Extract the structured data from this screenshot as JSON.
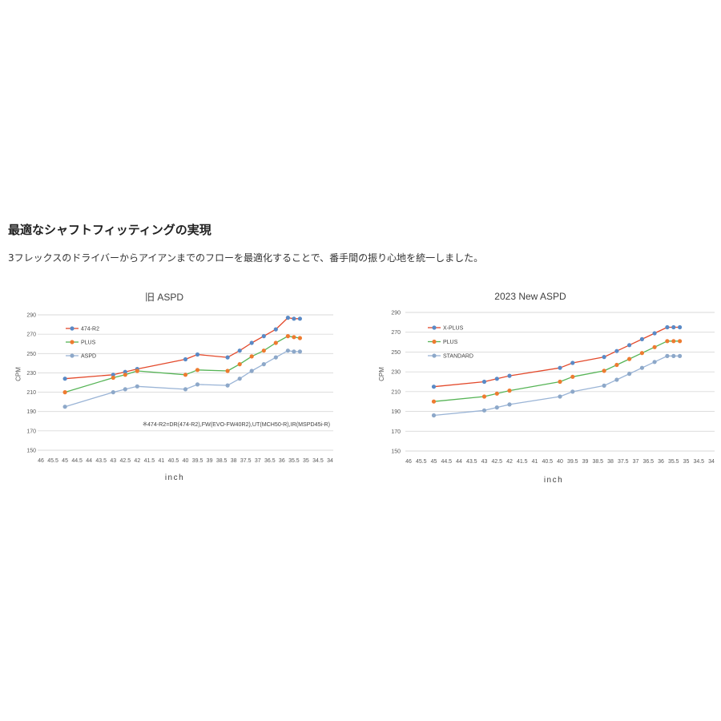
{
  "section": {
    "heading": "最適なシャフトフィッティングの実現",
    "description": "3フレックスのドライバーからアイアンまでのフローを最適化することで、番手間の振り心地を統一しました。"
  },
  "chart_data": [
    {
      "type": "line",
      "title": "旧 ASPD",
      "xlabel": "inch",
      "ylabel": "CPM",
      "xlim": [
        46,
        34
      ],
      "x_axis_reversed": true,
      "ylim": [
        150,
        290
      ],
      "x_ticks": [
        46,
        45.5,
        45,
        44.5,
        44,
        43.5,
        43,
        42.5,
        42,
        41.5,
        41,
        40.5,
        40,
        39.5,
        39,
        38.5,
        38,
        37.5,
        37,
        36.5,
        36,
        35.5,
        35,
        34.5,
        34
      ],
      "y_ticks": [
        150,
        170,
        190,
        210,
        230,
        250,
        270,
        290
      ],
      "grid": "horizontal",
      "legend": "top-left",
      "x": [
        45,
        43,
        42.5,
        42,
        40,
        39.5,
        38.25,
        37.75,
        37.25,
        36.75,
        36.25,
        35.75,
        35.5,
        35.25
      ],
      "series": [
        {
          "name": "474-R2",
          "line_color": "#E3492B",
          "marker_color": "#5A8AC6",
          "values": [
            224,
            228,
            231,
            234,
            244,
            249,
            246,
            253,
            261,
            268,
            275,
            287,
            286,
            286
          ]
        },
        {
          "name": "PLUS",
          "line_color": "#56B456",
          "marker_color": "#EE7B30",
          "values": [
            210,
            225,
            228,
            232,
            228,
            233,
            232,
            239,
            247,
            253,
            261,
            268,
            267,
            266
          ]
        },
        {
          "name": "ASPD",
          "line_color": "#9AB4D6",
          "marker_color": "#8DA8C9",
          "values": [
            195,
            210,
            213,
            216,
            213,
            218,
            217,
            224,
            232,
            239,
            246,
            253,
            252,
            252
          ]
        }
      ],
      "annotation": "※474-R2=DR(474-R2),FW(EVO-FW40R2),UT(MCH50-R),IR(MSPD45i-R)"
    },
    {
      "type": "line",
      "title": "2023 New ASPD",
      "xlabel": "inch",
      "ylabel": "CPM",
      "xlim": [
        46,
        34
      ],
      "x_axis_reversed": true,
      "ylim": [
        150,
        290
      ],
      "x_ticks": [
        46,
        45.5,
        45,
        44.5,
        44,
        43.5,
        43,
        42.5,
        42,
        41.5,
        41,
        40.5,
        40,
        39.5,
        39,
        38.5,
        38,
        37.5,
        37,
        36.5,
        36,
        35.5,
        35,
        34.5,
        34
      ],
      "y_ticks": [
        150,
        170,
        190,
        210,
        230,
        250,
        270,
        290
      ],
      "grid": "horizontal",
      "legend": "top-left",
      "x": [
        45,
        43,
        42.5,
        42,
        40,
        39.5,
        38.25,
        37.75,
        37.25,
        36.75,
        36.25,
        35.75,
        35.5,
        35.25
      ],
      "series": [
        {
          "name": "X-PLUS",
          "line_color": "#E3492B",
          "marker_color": "#5A8AC6",
          "values": [
            215,
            220,
            223,
            226,
            234,
            239,
            245,
            251,
            257,
            263,
            269,
            275,
            275,
            275
          ]
        },
        {
          "name": "PLUS",
          "line_color": "#56B456",
          "marker_color": "#EE7B30",
          "values": [
            200,
            205,
            208,
            211,
            220,
            225,
            231,
            237,
            243,
            249,
            255,
            261,
            261,
            261
          ]
        },
        {
          "name": "STANDARD",
          "line_color": "#9AB4D6",
          "marker_color": "#8DA8C9",
          "values": [
            186,
            191,
            194,
            197,
            205,
            210,
            216,
            222,
            228,
            234,
            240,
            246,
            246,
            246
          ]
        }
      ]
    }
  ]
}
